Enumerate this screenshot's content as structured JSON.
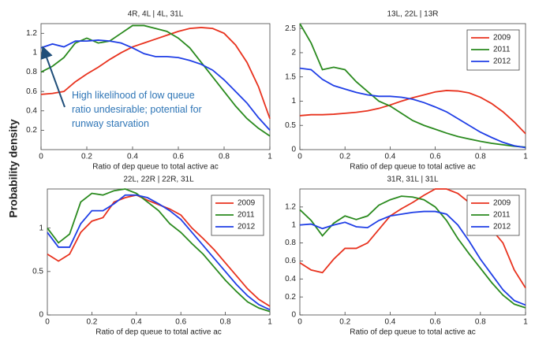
{
  "y_label": "Probability density",
  "chart_data": [
    {
      "type": "line",
      "title": "4R, 4L | 4L, 31L",
      "x_label": "Ratio of dep queue to total active ac",
      "annotation": [
        "High likelihood of low queue",
        "ratio undesirable; potential for",
        "runway starvation"
      ],
      "legend": false,
      "x": [
        0,
        0.05,
        0.1,
        0.15,
        0.2,
        0.25,
        0.3,
        0.35,
        0.4,
        0.45,
        0.5,
        0.55,
        0.6,
        0.65,
        0.7,
        0.75,
        0.8,
        0.85,
        0.9,
        0.95,
        1
      ],
      "xlim": [
        0,
        1
      ],
      "xticks": [
        0,
        0.2,
        0.4,
        0.6,
        0.8,
        1
      ],
      "ylim": [
        0,
        1.3
      ],
      "yticks": [
        0.2,
        0.4,
        0.6,
        0.8,
        1,
        1.2
      ],
      "series": [
        {
          "color": "#e8321e",
          "values": [
            0.57,
            0.58,
            0.6,
            0.7,
            0.78,
            0.85,
            0.93,
            1.0,
            1.06,
            1.1,
            1.14,
            1.18,
            1.22,
            1.25,
            1.26,
            1.25,
            1.2,
            1.08,
            0.9,
            0.65,
            0.32
          ]
        },
        {
          "color": "#2a8a1e",
          "values": [
            0.8,
            0.86,
            0.95,
            1.1,
            1.15,
            1.1,
            1.12,
            1.2,
            1.28,
            1.28,
            1.25,
            1.22,
            1.15,
            1.05,
            0.9,
            0.75,
            0.6,
            0.45,
            0.32,
            0.22,
            0.14
          ]
        },
        {
          "color": "#1f3ee6",
          "values": [
            1.05,
            1.09,
            1.06,
            1.12,
            1.12,
            1.13,
            1.12,
            1.1,
            1.05,
            0.99,
            0.96,
            0.96,
            0.95,
            0.92,
            0.88,
            0.82,
            0.72,
            0.6,
            0.48,
            0.33,
            0.2
          ]
        }
      ]
    },
    {
      "type": "line",
      "title": "13L, 22L | 13R",
      "x_label": "Ratio of dep queue to total active ac",
      "legend": true,
      "x": [
        0,
        0.05,
        0.1,
        0.15,
        0.2,
        0.25,
        0.3,
        0.35,
        0.4,
        0.45,
        0.5,
        0.55,
        0.6,
        0.65,
        0.7,
        0.75,
        0.8,
        0.85,
        0.9,
        0.95,
        1
      ],
      "xlim": [
        0,
        1
      ],
      "xticks": [
        0,
        0.2,
        0.4,
        0.6,
        0.8,
        1
      ],
      "ylim": [
        0,
        2.6
      ],
      "yticks": [
        0,
        0.5,
        1,
        1.5,
        2,
        2.5
      ],
      "series": [
        {
          "name": "2009",
          "color": "#e8321e",
          "values": [
            0.7,
            0.72,
            0.72,
            0.73,
            0.75,
            0.77,
            0.8,
            0.85,
            0.92,
            1.0,
            1.07,
            1.13,
            1.19,
            1.22,
            1.21,
            1.17,
            1.08,
            0.95,
            0.78,
            0.57,
            0.33
          ]
        },
        {
          "name": "2011",
          "color": "#2a8a1e",
          "values": [
            2.6,
            2.2,
            1.65,
            1.7,
            1.65,
            1.4,
            1.2,
            1.0,
            0.9,
            0.75,
            0.6,
            0.5,
            0.42,
            0.34,
            0.27,
            0.22,
            0.17,
            0.13,
            0.1,
            0.07,
            0.05
          ]
        },
        {
          "name": "2012",
          "color": "#1f3ee6",
          "values": [
            1.68,
            1.65,
            1.45,
            1.32,
            1.25,
            1.18,
            1.13,
            1.1,
            1.1,
            1.08,
            1.04,
            0.97,
            0.88,
            0.78,
            0.64,
            0.5,
            0.36,
            0.25,
            0.15,
            0.08,
            0.04
          ]
        }
      ]
    },
    {
      "type": "line",
      "title": "22L, 22R | 22R, 31L",
      "x_label": "Ratio of dep queue to total active ac",
      "legend": true,
      "x": [
        0,
        0.05,
        0.1,
        0.15,
        0.2,
        0.25,
        0.3,
        0.35,
        0.4,
        0.45,
        0.5,
        0.55,
        0.6,
        0.65,
        0.7,
        0.75,
        0.8,
        0.85,
        0.9,
        0.95,
        1
      ],
      "xlim": [
        0,
        1
      ],
      "xticks": [
        0,
        0.2,
        0.4,
        0.6,
        0.8,
        1
      ],
      "ylim": [
        0,
        1.45
      ],
      "yticks": [
        0,
        0.5,
        1
      ],
      "series": [
        {
          "name": "2009",
          "color": "#e8321e",
          "values": [
            0.7,
            0.62,
            0.7,
            0.95,
            1.08,
            1.12,
            1.3,
            1.35,
            1.38,
            1.32,
            1.27,
            1.22,
            1.15,
            1.0,
            0.88,
            0.75,
            0.6,
            0.45,
            0.3,
            0.18,
            0.1
          ]
        },
        {
          "name": "2011",
          "color": "#2a8a1e",
          "values": [
            1.0,
            0.83,
            0.93,
            1.3,
            1.4,
            1.38,
            1.43,
            1.45,
            1.4,
            1.3,
            1.2,
            1.05,
            0.95,
            0.82,
            0.7,
            0.55,
            0.4,
            0.27,
            0.15,
            0.08,
            0.04
          ]
        },
        {
          "name": "2012",
          "color": "#1f3ee6",
          "values": [
            0.95,
            0.78,
            0.78,
            1.05,
            1.2,
            1.2,
            1.28,
            1.38,
            1.38,
            1.35,
            1.28,
            1.2,
            1.1,
            0.95,
            0.8,
            0.65,
            0.5,
            0.35,
            0.22,
            0.12,
            0.06
          ]
        }
      ]
    },
    {
      "type": "line",
      "title": "31R, 31L | 31L",
      "x_label": "Ratio of dep queue to total active ac",
      "legend": true,
      "x": [
        0,
        0.05,
        0.1,
        0.15,
        0.2,
        0.25,
        0.3,
        0.35,
        0.4,
        0.45,
        0.5,
        0.55,
        0.6,
        0.65,
        0.7,
        0.75,
        0.8,
        0.85,
        0.9,
        0.95,
        1
      ],
      "xlim": [
        0,
        1
      ],
      "xticks": [
        0,
        0.2,
        0.4,
        0.6,
        0.8,
        1
      ],
      "ylim": [
        0,
        1.4
      ],
      "yticks": [
        0,
        0.2,
        0.4,
        0.6,
        0.8,
        1,
        1.2
      ],
      "series": [
        {
          "name": "2009",
          "color": "#e8321e",
          "values": [
            0.58,
            0.5,
            0.47,
            0.62,
            0.74,
            0.74,
            0.8,
            0.95,
            1.1,
            1.18,
            1.25,
            1.33,
            1.4,
            1.4,
            1.35,
            1.25,
            1.1,
            0.95,
            0.8,
            0.5,
            0.3
          ]
        },
        {
          "name": "2011",
          "color": "#2a8a1e",
          "values": [
            1.17,
            1.05,
            0.88,
            1.02,
            1.1,
            1.06,
            1.1,
            1.22,
            1.28,
            1.32,
            1.31,
            1.28,
            1.2,
            1.05,
            0.85,
            0.68,
            0.52,
            0.36,
            0.22,
            0.12,
            0.08
          ]
        },
        {
          "name": "2012",
          "color": "#1f3ee6",
          "values": [
            1.0,
            1.01,
            0.96,
            1.0,
            1.03,
            0.98,
            0.97,
            1.05,
            1.1,
            1.12,
            1.14,
            1.15,
            1.15,
            1.12,
            1.0,
            0.82,
            0.62,
            0.45,
            0.28,
            0.16,
            0.11
          ]
        }
      ]
    }
  ]
}
